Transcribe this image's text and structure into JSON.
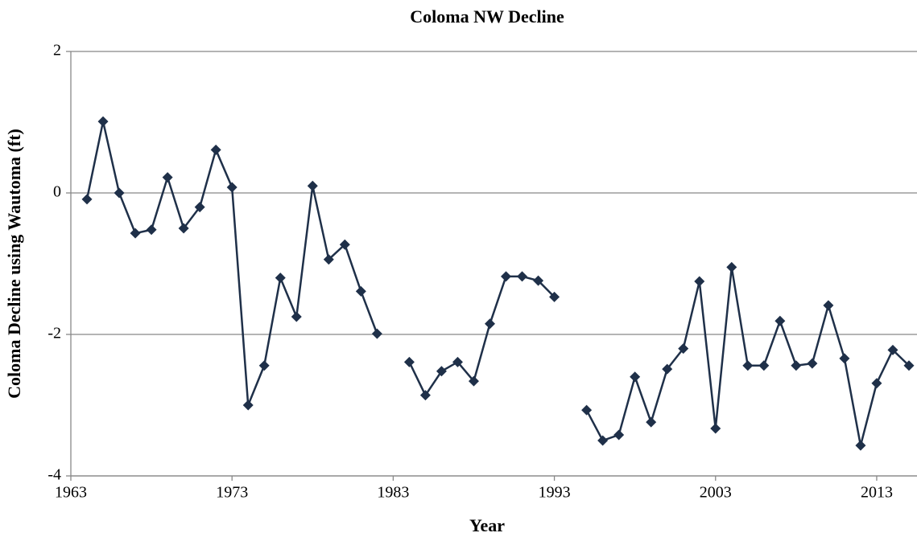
{
  "chart_data": {
    "type": "line",
    "title": "Coloma NW Decline",
    "x_label": "Year",
    "y_label": "Coloma Decline using Wautoma (ft)",
    "x": [
      1964,
      1965,
      1966,
      1967,
      1968,
      1969,
      1970,
      1971,
      1972,
      1973,
      1974,
      1975,
      1976,
      1977,
      1978,
      1979,
      1980,
      1981,
      1982,
      1983,
      1984,
      1985,
      1986,
      1987,
      1988,
      1989,
      1990,
      1991,
      1992,
      1993,
      1994,
      1995,
      1996,
      1997,
      1998,
      1999,
      2000,
      2001,
      2002,
      2003,
      2004,
      2005,
      2006,
      2007,
      2008,
      2009,
      2010,
      2011,
      2012,
      2013,
      2014,
      2015
    ],
    "values": [
      -0.09,
      1.01,
      0,
      -0.57,
      -0.52,
      0.22,
      -0.5,
      -0.2,
      0.61,
      0.08,
      -3.0,
      -2.44,
      -1.2,
      -1.75,
      0.1,
      -0.94,
      -0.73,
      -1.39,
      -1.99,
      null,
      -2.39,
      -2.86,
      -2.52,
      -2.39,
      -2.66,
      -1.85,
      -1.18,
      -1.18,
      -1.24,
      -1.47,
      null,
      -3.07,
      -3.5,
      -3.42,
      -2.6,
      -3.24,
      -2.49,
      -2.2,
      -1.25,
      -3.33,
      -1.05,
      -2.44,
      -2.44,
      -1.81,
      -2.44,
      -2.41,
      -1.59,
      -2.34,
      -3.57,
      -2.69,
      -2.22,
      -2.44
    ],
    "color": "#1f3049",
    "xlim": [
      1963,
      2015.5
    ],
    "xticks": [
      1963,
      1973,
      1983,
      1993,
      2003,
      2013
    ],
    "ylim": [
      -4,
      2
    ],
    "yticks": [
      -4,
      -2,
      0,
      2
    ],
    "grid": true
  }
}
